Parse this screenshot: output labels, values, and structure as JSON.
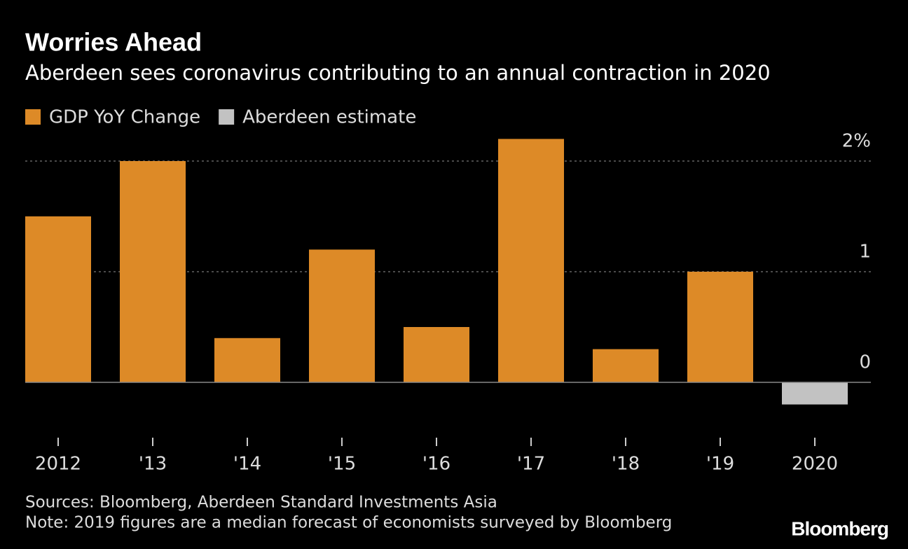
{
  "chart_data": {
    "type": "bar",
    "title": "Worries Ahead",
    "subtitle": "Aberdeen sees coronavirus contributing to an annual contraction in 2020",
    "categories": [
      "2012",
      "'13",
      "'14",
      "'15",
      "'16",
      "'17",
      "'18",
      "'19",
      "2020"
    ],
    "series": [
      {
        "name": "GDP YoY Change",
        "color": "#dd8a27",
        "values": [
          1.5,
          2.0,
          0.4,
          1.2,
          0.5,
          2.2,
          0.3,
          1.0,
          null
        ]
      },
      {
        "name": "Aberdeen estimate",
        "color": "#c2c2c2",
        "values": [
          null,
          null,
          null,
          null,
          null,
          null,
          null,
          null,
          -0.2
        ]
      }
    ],
    "ylim": [
      -0.35,
      2.25
    ],
    "yticks": [
      {
        "value": 2,
        "label": "2%"
      },
      1,
      0
    ],
    "grid": true,
    "legend": "top-left",
    "source": "Sources: Bloomberg, Aberdeen Standard Investments Asia",
    "note": "Note: 2019 figures are a median forecast of economists surveyed by Bloomberg",
    "logo": "Bloomberg"
  }
}
